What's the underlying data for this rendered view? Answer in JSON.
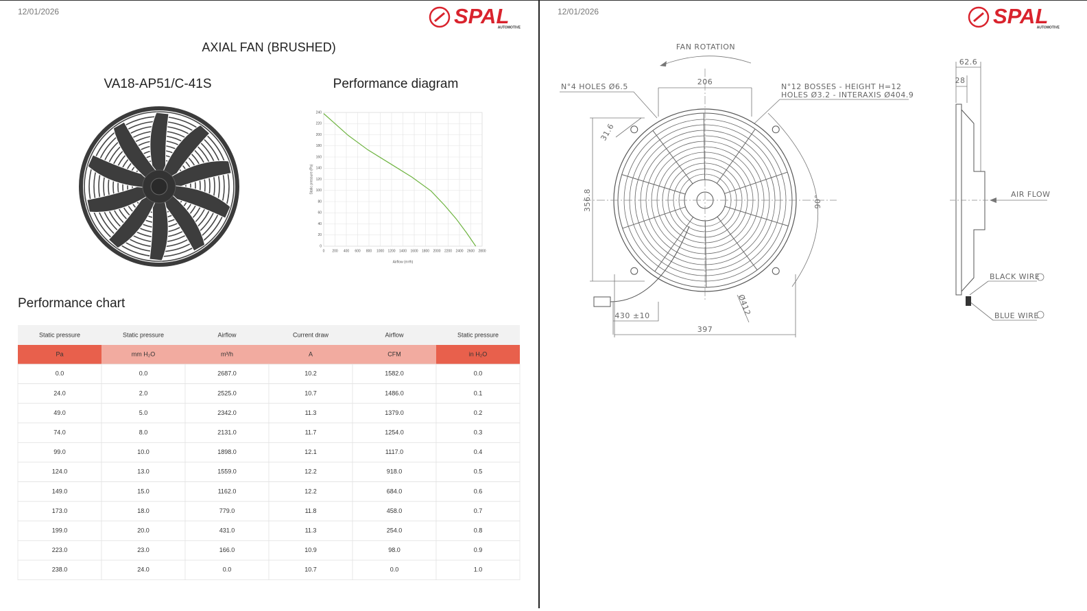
{
  "left_page": {
    "date": "12/01/2026",
    "logo": {
      "brand": "SPAL",
      "tagline": "AUTOMOTIVE"
    },
    "title": "AXIAL FAN (BRUSHED)",
    "model": "VA18-AP51/C-41S",
    "diagram_title": "Performance diagram",
    "chart_title": "Performance chart",
    "table": {
      "header": [
        "Static pressure",
        "Static pressure",
        "Airflow",
        "Current draw",
        "Airflow",
        "Static pressure"
      ],
      "units": [
        "Pa",
        "mm H₂O",
        "m³/h",
        "A",
        "CFM",
        "in H₂O"
      ],
      "rows": [
        [
          "0.0",
          "0.0",
          "2687.0",
          "10.2",
          "1582.0",
          "0.0"
        ],
        [
          "24.0",
          "2.0",
          "2525.0",
          "10.7",
          "1486.0",
          "0.1"
        ],
        [
          "49.0",
          "5.0",
          "2342.0",
          "11.3",
          "1379.0",
          "0.2"
        ],
        [
          "74.0",
          "8.0",
          "2131.0",
          "11.7",
          "1254.0",
          "0.3"
        ],
        [
          "99.0",
          "10.0",
          "1898.0",
          "12.1",
          "1117.0",
          "0.4"
        ],
        [
          "124.0",
          "13.0",
          "1559.0",
          "12.2",
          "918.0",
          "0.5"
        ],
        [
          "149.0",
          "15.0",
          "1162.0",
          "12.2",
          "684.0",
          "0.6"
        ],
        [
          "173.0",
          "18.0",
          "779.0",
          "11.8",
          "458.0",
          "0.7"
        ],
        [
          "199.0",
          "20.0",
          "431.0",
          "11.3",
          "254.0",
          "0.8"
        ],
        [
          "223.0",
          "23.0",
          "166.0",
          "10.9",
          "98.0",
          "0.9"
        ],
        [
          "238.0",
          "24.0",
          "0.0",
          "10.7",
          "0.0",
          "1.0"
        ]
      ]
    }
  },
  "chart_data": {
    "type": "line",
    "x_label": "Airflow (m³/h)",
    "y_label": "Static pressure (Pa)",
    "x": [
      0,
      166,
      431,
      779,
      1162,
      1559,
      1898,
      2131,
      2342,
      2525,
      2687
    ],
    "series": [
      {
        "color": "#6db33f",
        "values": [
          238,
          223,
          199,
          173,
          149,
          124,
          99,
          74,
          49,
          24,
          0
        ]
      }
    ],
    "xlim": [
      0,
      2800
    ],
    "ylim": [
      0,
      240
    ],
    "xticks": [
      0,
      200,
      400,
      600,
      800,
      1000,
      1200,
      1400,
      1600,
      1800,
      2000,
      2200,
      2400,
      2600,
      2800
    ],
    "yticks": [
      0,
      20,
      40,
      60,
      80,
      100,
      120,
      140,
      160,
      180,
      200,
      220,
      240
    ],
    "grid": true
  },
  "right_page": {
    "date": "12/01/2026",
    "logo": {
      "brand": "SPAL",
      "tagline": "AUTOMOTIVE"
    },
    "drawing": {
      "fan_rotation": "FAN ROTATION",
      "holes": "N°4 HOLES Ø6.5",
      "bosses": "N°12 BOSSES - HEIGHT H=12",
      "bosses_holes": "HOLES Ø3.2 - INTERAXIS Ø404.9",
      "dim_206": "206",
      "dim_31_6": "31.6",
      "dim_356_8": "356.8",
      "dim_90": "90°",
      "dim_412": "Ø412",
      "dim_430": "430 ±10",
      "dim_397": "397",
      "dim_62_6": "62.6",
      "dim_28": "28",
      "air_flow": "AIR FLOW",
      "black_wire": "BLACK WIRE",
      "blue_wire": "BLUE WIRE"
    }
  }
}
